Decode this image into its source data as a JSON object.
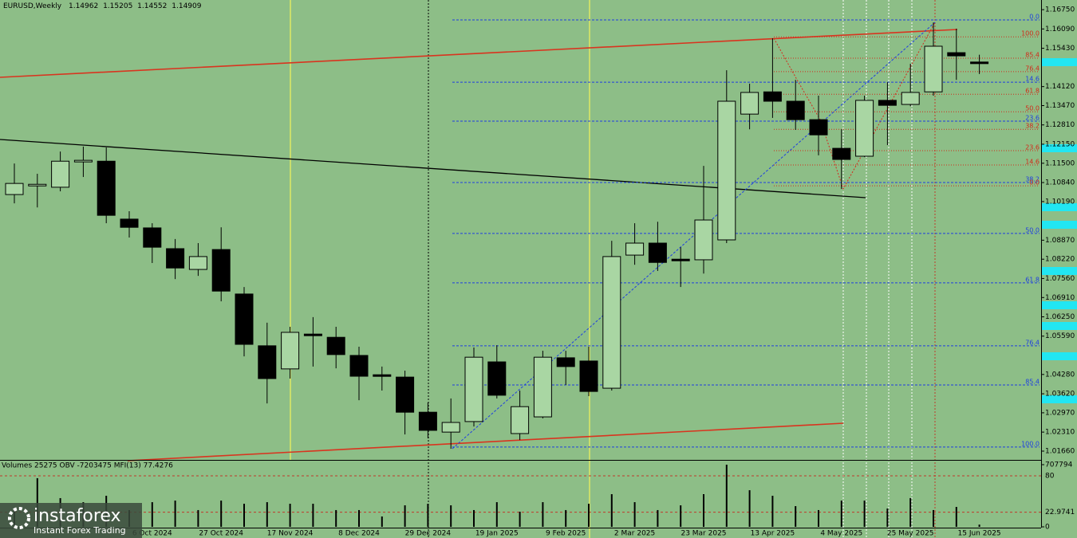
{
  "chart_data": [
    {
      "type": "candlestick",
      "title": "EURUSD,Weekly",
      "header_values": [
        1.14962,
        1.15205,
        1.14552,
        1.14909
      ],
      "categories": [
        null,
        null,
        null,
        null,
        null,
        null,
        "6 Oct 2024",
        null,
        null,
        "27 Oct 2024",
        null,
        null,
        "17 Nov 2024",
        null,
        null,
        "8 Dec 2024",
        null,
        null,
        "29 Dec 2024",
        null,
        null,
        "19 Jan 2025",
        null,
        null,
        "9 Feb 2025",
        null,
        null,
        "2 Mar 2025",
        null,
        null,
        "23 Mar 2025",
        null,
        null,
        "13 Apr 2025",
        null,
        null,
        "4 May 2025",
        null,
        null,
        "25 May 2025",
        null,
        null,
        "15 Jun 2025"
      ],
      "open": [
        1.1043,
        1.1073,
        1.1068,
        1.1157,
        1.1157,
        1.0959,
        1.0929,
        1.0858,
        1.0787,
        1.0855,
        1.0703,
        1.0526,
        1.0447,
        1.0566,
        1.0555,
        1.0493,
        1.0427,
        1.0419,
        1.0299,
        1.0231,
        1.0267,
        1.0471,
        1.0226,
        1.0283,
        1.0485,
        1.0474,
        1.0381,
        1.0836,
        1.0877,
        1.0822,
        1.082,
        1.0888,
        1.1318,
        1.1394,
        1.1362,
        1.1299,
        1.1201,
        1.1174,
        1.1365,
        1.1351,
        1.1394,
        1.1528,
        1.1496
      ],
      "high": [
        1.1149,
        1.1114,
        1.119,
        1.1207,
        1.1204,
        1.0986,
        1.0945,
        1.0891,
        1.0877,
        1.0931,
        1.0727,
        1.0605,
        1.0591,
        1.0624,
        1.0591,
        1.0523,
        1.0455,
        1.0441,
        1.0332,
        1.0346,
        1.052,
        1.0528,
        1.0373,
        1.0509,
        1.0509,
        1.0523,
        1.0885,
        1.0945,
        1.095,
        1.0863,
        1.1141,
        1.1468,
        1.1422,
        1.1577,
        1.1435,
        1.1381,
        1.1266,
        1.1381,
        1.1427,
        1.149,
        1.1631,
        1.161,
        1.1521
      ],
      "low": [
        1.1013,
        1.0999,
        1.1054,
        1.1103,
        1.0945,
        1.0896,
        1.0809,
        1.0754,
        1.0765,
        1.0678,
        1.049,
        1.0329,
        1.0414,
        1.0455,
        1.0449,
        1.034,
        1.0373,
        1.0223,
        1.021,
        1.0174,
        1.025,
        1.0346,
        1.0204,
        1.0278,
        1.0392,
        1.0354,
        1.0373,
        1.0803,
        1.0782,
        1.0727,
        1.0773,
        1.0877,
        1.1266,
        1.1305,
        1.1264,
        1.1177,
        1.1062,
        1.1171,
        1.1212,
        1.1345,
        1.1381,
        1.1435,
        1.1455
      ],
      "close": [
        1.1081,
        1.1078,
        1.1157,
        1.116,
        1.0972,
        1.0931,
        1.0863,
        1.0792,
        1.0831,
        1.0713,
        1.0531,
        1.0414,
        1.0572,
        1.0561,
        1.0496,
        1.0422,
        1.0422,
        1.0299,
        1.0237,
        1.0264,
        1.0487,
        1.0357,
        1.0318,
        1.0487,
        1.0455,
        1.037,
        1.0831,
        1.0877,
        1.0811,
        1.0817,
        1.0956,
        1.1362,
        1.1392,
        1.1362,
        1.1299,
        1.1247,
        1.1163,
        1.1365,
        1.1348,
        1.1392,
        1.155,
        1.1517,
        1.1491
      ],
      "up_color": "#a9d6a3",
      "down_color": "#000000",
      "ylim": [
        1.0136,
        1.1708
      ],
      "yticks": [
        {
          "value": 1.1675,
          "label": "1.16750"
        },
        {
          "value": 1.1609,
          "label": "1.16090"
        },
        {
          "value": 1.1543,
          "label": "1.15430"
        },
        {
          "value": 1.1412,
          "label": "1.14120"
        },
        {
          "value": 1.1347,
          "label": "1.13470"
        },
        {
          "value": 1.1281,
          "label": "1.12810"
        },
        {
          "value": 1.1215,
          "label": "1.12150"
        },
        {
          "value": 1.115,
          "label": "1.11500"
        },
        {
          "value": 1.1084,
          "label": "1.10840"
        },
        {
          "value": 1.1019,
          "label": "1.10190"
        },
        {
          "value": 1.0887,
          "label": "1.08870"
        },
        {
          "value": 1.0822,
          "label": "1.08220"
        },
        {
          "value": 1.0756,
          "label": "1.07560"
        },
        {
          "value": 1.0691,
          "label": "1.06910"
        },
        {
          "value": 1.0625,
          "label": "1.06250"
        },
        {
          "value": 1.0559,
          "label": "1.05590"
        },
        {
          "value": 1.0428,
          "label": "1.04280"
        },
        {
          "value": 1.0362,
          "label": "1.03620"
        },
        {
          "value": 1.0297,
          "label": "1.02970"
        },
        {
          "value": 1.0231,
          "label": "1.02310"
        },
        {
          "value": 1.0166,
          "label": "1.01660"
        }
      ],
      "fib_levels": [
        {
          "color": "#1f3fe0",
          "levels": [
            {
              "value": 1.164,
              "label": "0.0"
            },
            {
              "value": 1.1427,
              "label": "14.6"
            },
            {
              "value": 1.1294,
              "label": "23.6"
            },
            {
              "value": 1.1084,
              "label": "38.2"
            },
            {
              "value": 1.091,
              "label": "50.0"
            },
            {
              "value": 1.0741,
              "label": "61.8"
            },
            {
              "value": 1.0526,
              "label": "76.4"
            },
            {
              "value": 1.0392,
              "label": "85.4"
            },
            {
              "value": 1.018,
              "label": "100.0"
            }
          ]
        },
        {
          "color": "#d22a1a",
          "levels": [
            {
              "value": 1.1582,
              "label": "100.0"
            },
            {
              "value": 1.1509,
              "label": "85.4"
            },
            {
              "value": 1.1463,
              "label": "76.4"
            },
            {
              "value": 1.1386,
              "label": "61.8"
            },
            {
              "value": 1.1326,
              "label": "50.0"
            },
            {
              "value": 1.1266,
              "label": "38.2"
            },
            {
              "value": 1.1193,
              "label": "23.6"
            },
            {
              "value": 1.1144,
              "label": "14.6"
            },
            {
              "value": 1.1073,
              "label": "0.0"
            }
          ]
        }
      ]
    },
    {
      "type": "bar",
      "title": "Volumes 25275 OBV -7203475 MFI(13) 77.4276",
      "values": [
        191000,
        554000,
        327000,
        281000,
        354000,
        191000,
        281000,
        299000,
        191000,
        299000,
        263000,
        281000,
        263000,
        263000,
        191000,
        191000,
        118000,
        245000,
        263000,
        245000,
        191000,
        281000,
        172000,
        281000,
        191000,
        263000,
        372000,
        281000,
        191000,
        245000,
        372000,
        707794,
        417000,
        354000,
        236000,
        191000,
        299000,
        299000,
        209000,
        327000,
        191000,
        227000,
        25275
      ],
      "color": "#000000",
      "ylim": [
        0,
        707794
      ],
      "yticks": [
        0,
        707794
      ],
      "mfi_ylim": [
        0,
        100
      ],
      "mfi_ticks": [
        22.9741,
        80
      ]
    }
  ],
  "logo": {
    "name": "instaforex",
    "tagline": "Instant Forex Trading"
  }
}
